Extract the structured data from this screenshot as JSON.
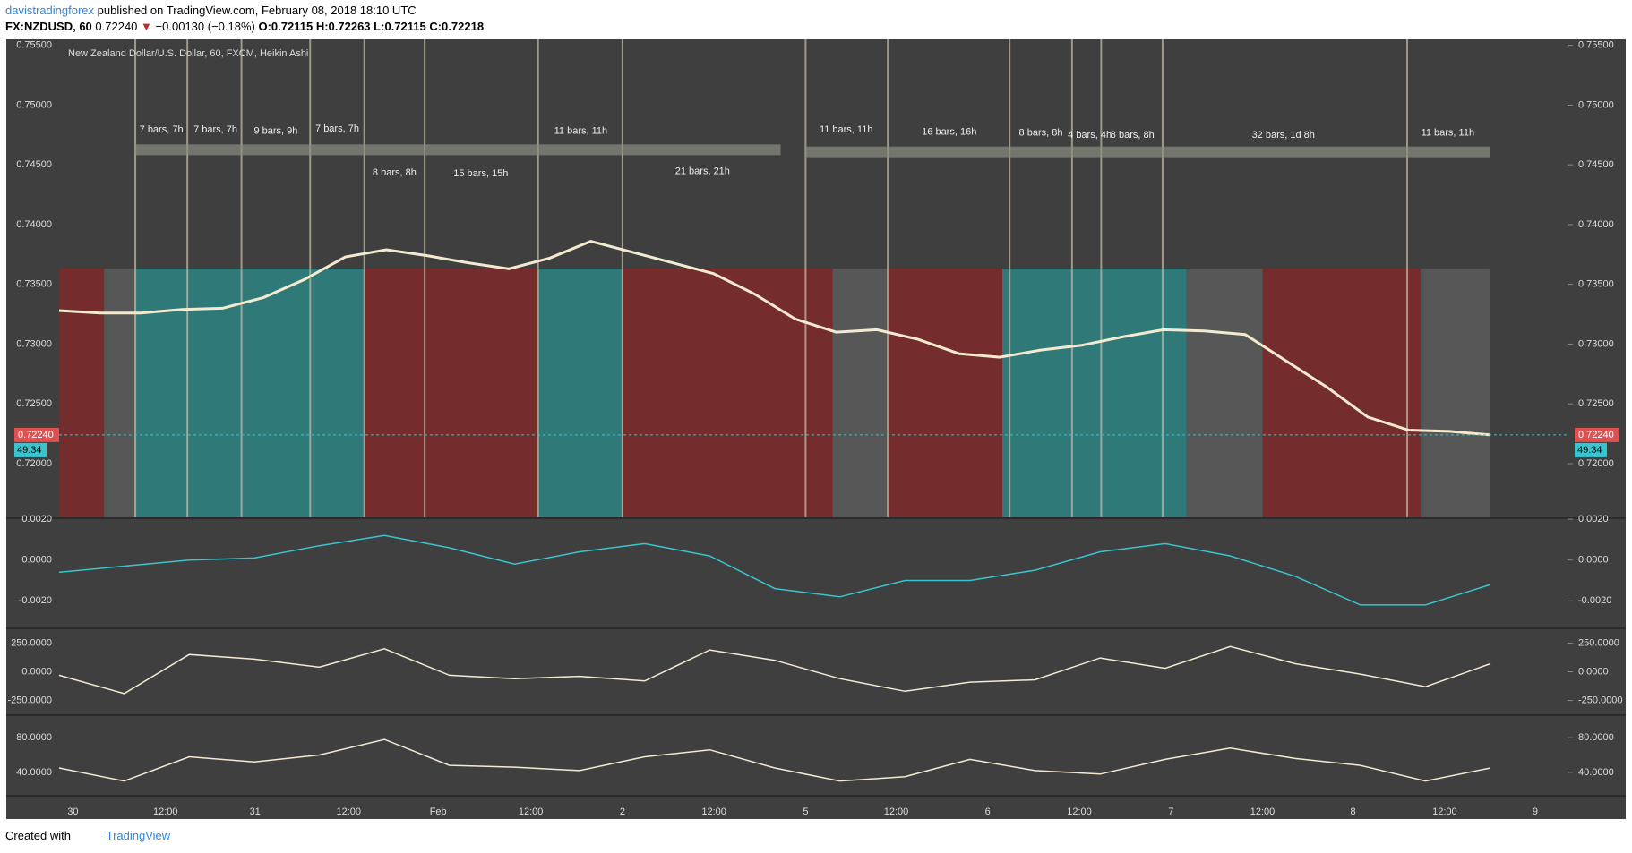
{
  "header": {
    "author": "davistradingforex",
    "published": "published on TradingView.com, February 08, 2018 18:10 UTC",
    "symbol": "FX:NZDUSD, 60",
    "last": "0.72240",
    "change": "−0.00130 (−0.18%)",
    "open": "O:0.72115",
    "high": "H:0.72263",
    "low": "L:0.72115",
    "close": "C:0.72218"
  },
  "chart_data": [
    {
      "type": "line",
      "title": "New Zealand Dollar/U.S. Dollar, 60, FXCM, Heikin Ashi",
      "color": "#f3ead0",
      "values": [
        0.7328,
        0.7326,
        0.7326,
        0.7329,
        0.733,
        0.7339,
        0.7354,
        0.7373,
        0.7379,
        0.7374,
        0.7368,
        0.7363,
        0.7372,
        0.7386,
        0.7377,
        0.7368,
        0.7359,
        0.7342,
        0.7321,
        0.731,
        0.7312,
        0.7304,
        0.7292,
        0.7289,
        0.7295,
        0.7299,
        0.7306,
        0.7312,
        0.7311,
        0.7308,
        0.7286,
        0.7264,
        0.7239,
        0.7228,
        0.7227,
        0.7224
      ],
      "ylim": [
        0.7555,
        0.7155
      ],
      "yticks": [
        {
          "value": 0.755,
          "label": "0.75500"
        },
        {
          "value": 0.75,
          "label": "0.75000"
        },
        {
          "value": 0.745,
          "label": "0.74500"
        },
        {
          "value": 0.74,
          "label": "0.74000"
        },
        {
          "value": 0.735,
          "label": "0.73500"
        },
        {
          "value": 0.73,
          "label": "0.73000"
        },
        {
          "value": 0.725,
          "label": "0.72500"
        },
        {
          "value": 0.72,
          "label": "0.72000"
        }
      ],
      "last_price": {
        "value": 0.7224,
        "label": "0.72240"
      },
      "countdown": "49:34",
      "annotations": [
        "7 bars, 7h",
        "7 bars, 7h",
        "9 bars, 9h",
        "7 bars, 7h",
        "8 bars, 8h",
        "15 bars, 15h",
        "11 bars, 11h",
        "21 bars, 21h",
        "11 bars, 11h",
        "16 bars, 16h",
        "8 bars, 8h",
        "4 bars, 4h",
        "8 bars, 8h",
        "32 bars, 1d 8h",
        "11 bars, 11h"
      ],
      "xticks": [
        "30",
        "12:00",
        "31",
        "12:00",
        "Feb",
        "12:00",
        "2",
        "12:00",
        "5",
        "12:00",
        "6",
        "12:00",
        "7",
        "12:00",
        "8",
        "12:00",
        "9"
      ]
    },
    {
      "type": "line",
      "color": "#39c5cf",
      "values": [
        -0.0006,
        -0.0003,
        0.0,
        0.0001,
        0.0007,
        0.0012,
        0.0006,
        -0.0002,
        0.0004,
        0.0008,
        0.0002,
        -0.0014,
        -0.0018,
        -0.001,
        -0.001,
        -0.0005,
        0.0004,
        0.0008,
        0.0002,
        -0.0008,
        -0.0022,
        -0.0022,
        -0.0012
      ],
      "ylim": [
        0.002,
        -0.0033
      ],
      "yticks": [
        {
          "value": 0.002,
          "label": "0.0020"
        },
        {
          "value": 0,
          "label": "0.0000"
        },
        {
          "value": -0.002,
          "label": "-0.0020"
        }
      ]
    },
    {
      "type": "line",
      "color": "#f3ead0",
      "values": [
        -30,
        -190,
        150,
        110,
        40,
        200,
        -30,
        -60,
        -40,
        -80,
        190,
        100,
        -60,
        -170,
        -90,
        -70,
        120,
        30,
        220,
        70,
        -20,
        -130,
        70
      ],
      "ylim": [
        370,
        -370
      ],
      "yticks": [
        {
          "value": 250,
          "label": "250.0000"
        },
        {
          "value": 0,
          "label": "0.0000"
        },
        {
          "value": -250,
          "label": "-250.0000"
        }
      ]
    },
    {
      "type": "line",
      "color": "#f3ead0",
      "values": [
        45,
        30,
        58,
        52,
        60,
        78,
        48,
        46,
        42,
        58,
        66,
        45,
        30,
        35,
        55,
        42,
        38,
        55,
        68,
        56,
        48,
        30,
        45
      ],
      "ylim": [
        105,
        13
      ],
      "yticks": [
        {
          "value": 80,
          "label": "80.0000"
        },
        {
          "value": 40,
          "label": "40.0000"
        }
      ]
    }
  ],
  "footer": {
    "created": "Created with",
    "brand": "TradingView"
  }
}
